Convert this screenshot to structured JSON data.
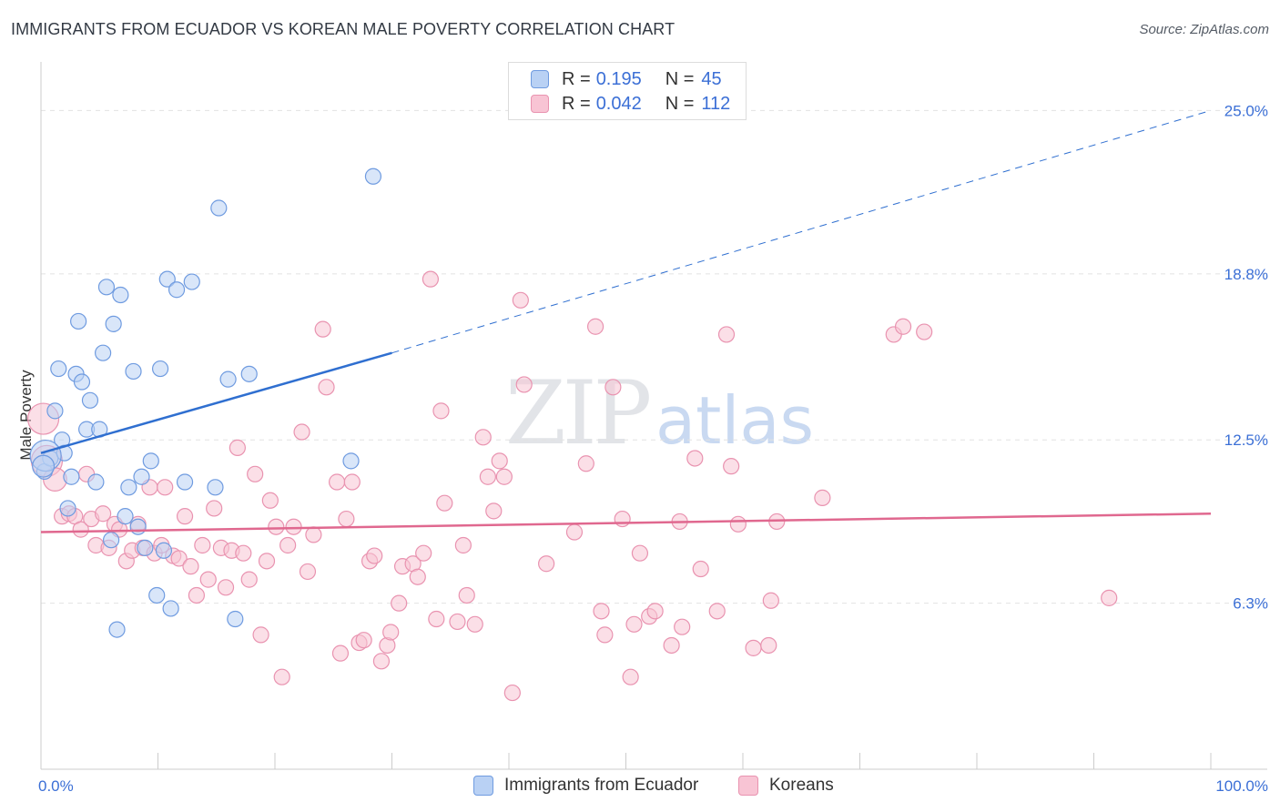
{
  "title": "IMMIGRANTS FROM ECUADOR VS KOREAN MALE POVERTY CORRELATION CHART",
  "source": "Source: ZipAtlas.com",
  "watermark": {
    "zip": "ZIP",
    "atlas": "atlas"
  },
  "legend_box": {
    "rows": [
      {
        "r_label": "R =",
        "r_value": "0.195",
        "n_label": "N =",
        "n_value": "45"
      },
      {
        "r_label": "R =",
        "r_value": "0.042",
        "n_label": "N =",
        "n_value": "112"
      }
    ]
  },
  "colors": {
    "ecuador_fill": "#b9d1f4",
    "ecuador_stroke": "#6f9be0",
    "ecuador_line": "#2f6fd0",
    "korean_fill": "#f8c4d4",
    "korean_stroke": "#e993b0",
    "korean_line": "#e0688f",
    "axis_label": "#3b6fd6",
    "grid": "#e2e2e2"
  },
  "chart_data": {
    "type": "scatter",
    "title": "IMMIGRANTS FROM ECUADOR VS KOREAN MALE POVERTY CORRELATION CHART",
    "xlabel": "",
    "ylabel": "Male Poverty",
    "xlim": [
      0,
      100
    ],
    "ylim": [
      0,
      26.5
    ],
    "x_tick_labels": {
      "min": "0.0%",
      "max": "100.0%"
    },
    "y_ticks": [
      {
        "value": 6.3,
        "label": "6.3%"
      },
      {
        "value": 12.5,
        "label": "12.5%"
      },
      {
        "value": 18.8,
        "label": "18.8%"
      },
      {
        "value": 25.0,
        "label": "25.0%"
      }
    ],
    "legend": [
      "Immigrants from Ecuador",
      "Koreans"
    ],
    "series": [
      {
        "name": "Immigrants from Ecuador",
        "r": 0.195,
        "n": 45,
        "trend": {
          "x0": 0,
          "y0": 12.0,
          "x1": 30,
          "y1": 15.8,
          "dashed_to_x": 100,
          "dashed_to_y": 25.0
        },
        "points": [
          [
            0.3,
            11.3,
            1
          ],
          [
            0.8,
            11.8,
            1
          ],
          [
            1.2,
            13.6,
            1
          ],
          [
            1.5,
            15.2,
            1
          ],
          [
            1.8,
            12.5,
            1
          ],
          [
            2.0,
            12.0,
            1
          ],
          [
            2.3,
            9.9,
            1
          ],
          [
            2.6,
            11.1,
            1
          ],
          [
            3.0,
            15.0,
            1
          ],
          [
            3.2,
            17.0,
            1
          ],
          [
            3.5,
            14.7,
            1
          ],
          [
            3.9,
            12.9,
            1
          ],
          [
            4.2,
            14.0,
            1
          ],
          [
            4.7,
            10.9,
            1
          ],
          [
            5.0,
            12.9,
            1
          ],
          [
            5.3,
            15.8,
            1
          ],
          [
            5.6,
            18.3,
            1
          ],
          [
            6.0,
            8.7,
            1
          ],
          [
            6.2,
            16.9,
            1
          ],
          [
            6.5,
            5.3,
            1
          ],
          [
            6.8,
            18.0,
            1
          ],
          [
            7.2,
            9.6,
            1
          ],
          [
            7.5,
            10.7,
            1
          ],
          [
            7.9,
            15.1,
            1
          ],
          [
            8.3,
            9.2,
            1
          ],
          [
            8.6,
            11.1,
            1
          ],
          [
            8.9,
            8.4,
            1
          ],
          [
            9.4,
            11.7,
            1
          ],
          [
            9.9,
            6.6,
            1
          ],
          [
            10.2,
            15.2,
            1
          ],
          [
            10.8,
            18.6,
            1
          ],
          [
            11.1,
            6.1,
            1
          ],
          [
            11.6,
            18.2,
            1
          ],
          [
            12.3,
            10.9,
            1
          ],
          [
            12.9,
            18.5,
            1
          ],
          [
            14.9,
            10.7,
            1
          ],
          [
            15.2,
            21.3,
            1
          ],
          [
            16.0,
            14.8,
            1
          ],
          [
            16.6,
            5.7,
            1
          ],
          [
            17.8,
            15.0,
            1
          ],
          [
            26.5,
            11.7,
            1
          ],
          [
            28.4,
            22.5,
            1
          ],
          [
            0.4,
            11.9,
            2
          ],
          [
            0.2,
            11.5,
            1.4
          ],
          [
            10.5,
            8.3,
            1
          ]
        ]
      },
      {
        "name": "Koreans",
        "r": 0.042,
        "n": 112,
        "trend": {
          "x0": 0,
          "y0": 9.0,
          "x1": 100,
          "y1": 9.7
        },
        "points": [
          [
            0.2,
            13.3,
            2
          ],
          [
            0.5,
            11.7,
            2
          ],
          [
            1.2,
            11.0,
            1.5
          ],
          [
            1.8,
            9.6,
            1
          ],
          [
            2.4,
            9.7,
            1
          ],
          [
            2.9,
            9.6,
            1
          ],
          [
            3.4,
            9.1,
            1
          ],
          [
            3.9,
            11.2,
            1
          ],
          [
            4.3,
            9.5,
            1
          ],
          [
            4.7,
            8.5,
            1
          ],
          [
            5.3,
            9.7,
            1
          ],
          [
            5.8,
            8.4,
            1
          ],
          [
            6.3,
            9.3,
            1
          ],
          [
            6.7,
            9.1,
            1
          ],
          [
            7.3,
            7.9,
            1
          ],
          [
            7.8,
            8.3,
            1
          ],
          [
            8.3,
            9.3,
            1
          ],
          [
            8.7,
            8.4,
            1
          ],
          [
            9.3,
            10.7,
            1
          ],
          [
            9.7,
            8.2,
            1
          ],
          [
            10.3,
            8.5,
            1
          ],
          [
            10.6,
            10.7,
            1
          ],
          [
            11.3,
            8.1,
            1
          ],
          [
            11.8,
            8.0,
            1
          ],
          [
            12.3,
            9.6,
            1
          ],
          [
            12.8,
            7.7,
            1
          ],
          [
            13.3,
            6.6,
            1
          ],
          [
            13.8,
            8.5,
            1
          ],
          [
            14.3,
            7.2,
            1
          ],
          [
            14.8,
            9.9,
            1
          ],
          [
            15.4,
            8.4,
            1
          ],
          [
            15.8,
            6.9,
            1
          ],
          [
            16.3,
            8.3,
            1
          ],
          [
            16.8,
            12.2,
            1
          ],
          [
            17.3,
            8.2,
            1
          ],
          [
            17.8,
            7.2,
            1
          ],
          [
            18.3,
            11.2,
            1
          ],
          [
            18.8,
            5.1,
            1
          ],
          [
            19.3,
            7.9,
            1
          ],
          [
            19.6,
            10.2,
            1
          ],
          [
            20.1,
            9.2,
            1
          ],
          [
            20.6,
            3.5,
            1
          ],
          [
            21.1,
            8.5,
            1
          ],
          [
            21.6,
            9.2,
            1
          ],
          [
            22.3,
            12.8,
            1
          ],
          [
            22.8,
            7.5,
            1
          ],
          [
            23.3,
            8.9,
            1
          ],
          [
            24.1,
            16.7,
            1
          ],
          [
            24.4,
            14.5,
            1
          ],
          [
            25.3,
            10.9,
            1
          ],
          [
            25.6,
            4.4,
            1
          ],
          [
            26.1,
            9.5,
            1
          ],
          [
            26.6,
            10.9,
            1
          ],
          [
            27.2,
            4.8,
            1
          ],
          [
            27.6,
            4.9,
            1
          ],
          [
            28.1,
            7.9,
            1
          ],
          [
            28.5,
            8.1,
            1
          ],
          [
            29.1,
            4.1,
            1
          ],
          [
            29.6,
            4.7,
            1
          ],
          [
            29.9,
            5.2,
            1
          ],
          [
            30.6,
            6.3,
            1
          ],
          [
            30.9,
            7.7,
            1
          ],
          [
            31.8,
            7.8,
            1
          ],
          [
            32.2,
            7.3,
            1
          ],
          [
            32.7,
            8.2,
            1
          ],
          [
            33.3,
            18.6,
            1
          ],
          [
            33.8,
            5.7,
            1
          ],
          [
            34.2,
            13.6,
            1
          ],
          [
            34.5,
            10.1,
            1
          ],
          [
            35.6,
            5.6,
            1
          ],
          [
            36.1,
            8.5,
            1
          ],
          [
            36.4,
            6.6,
            1
          ],
          [
            37.1,
            5.5,
            1
          ],
          [
            37.8,
            12.6,
            1
          ],
          [
            38.2,
            11.1,
            1
          ],
          [
            38.7,
            9.8,
            1
          ],
          [
            39.2,
            11.7,
            1
          ],
          [
            39.6,
            11.1,
            1
          ],
          [
            40.3,
            2.9,
            1
          ],
          [
            41.0,
            17.8,
            1
          ],
          [
            41.3,
            14.6,
            1
          ],
          [
            43.2,
            7.8,
            1
          ],
          [
            45.6,
            9.0,
            1
          ],
          [
            46.6,
            11.6,
            1
          ],
          [
            47.4,
            16.8,
            1
          ],
          [
            47.9,
            6.0,
            1
          ],
          [
            48.2,
            5.1,
            1
          ],
          [
            48.9,
            14.5,
            1
          ],
          [
            49.7,
            9.5,
            1
          ],
          [
            50.4,
            3.5,
            1
          ],
          [
            50.7,
            5.5,
            1
          ],
          [
            51.2,
            8.2,
            1
          ],
          [
            52.0,
            5.8,
            1
          ],
          [
            52.5,
            6.0,
            1
          ],
          [
            53.9,
            4.7,
            1
          ],
          [
            54.6,
            9.4,
            1
          ],
          [
            54.8,
            5.4,
            1
          ],
          [
            55.9,
            11.8,
            1
          ],
          [
            56.4,
            7.6,
            1
          ],
          [
            57.8,
            6.0,
            1
          ],
          [
            58.6,
            16.5,
            1
          ],
          [
            59.0,
            11.5,
            1
          ],
          [
            59.6,
            9.3,
            1
          ],
          [
            60.9,
            4.6,
            1
          ],
          [
            62.2,
            4.7,
            1
          ],
          [
            62.4,
            6.4,
            1
          ],
          [
            62.9,
            9.4,
            1
          ],
          [
            66.8,
            10.3,
            1
          ],
          [
            72.9,
            16.5,
            1
          ],
          [
            73.7,
            16.8,
            1
          ],
          [
            75.5,
            16.6,
            1
          ],
          [
            91.3,
            6.5,
            1
          ]
        ]
      }
    ]
  },
  "axis": {
    "y_label": "Male Poverty",
    "x_min_label": "0.0%",
    "x_max_label": "100.0%"
  },
  "bottom_legend": {
    "items": [
      {
        "label": "Immigrants from Ecuador"
      },
      {
        "label": "Koreans"
      }
    ]
  }
}
